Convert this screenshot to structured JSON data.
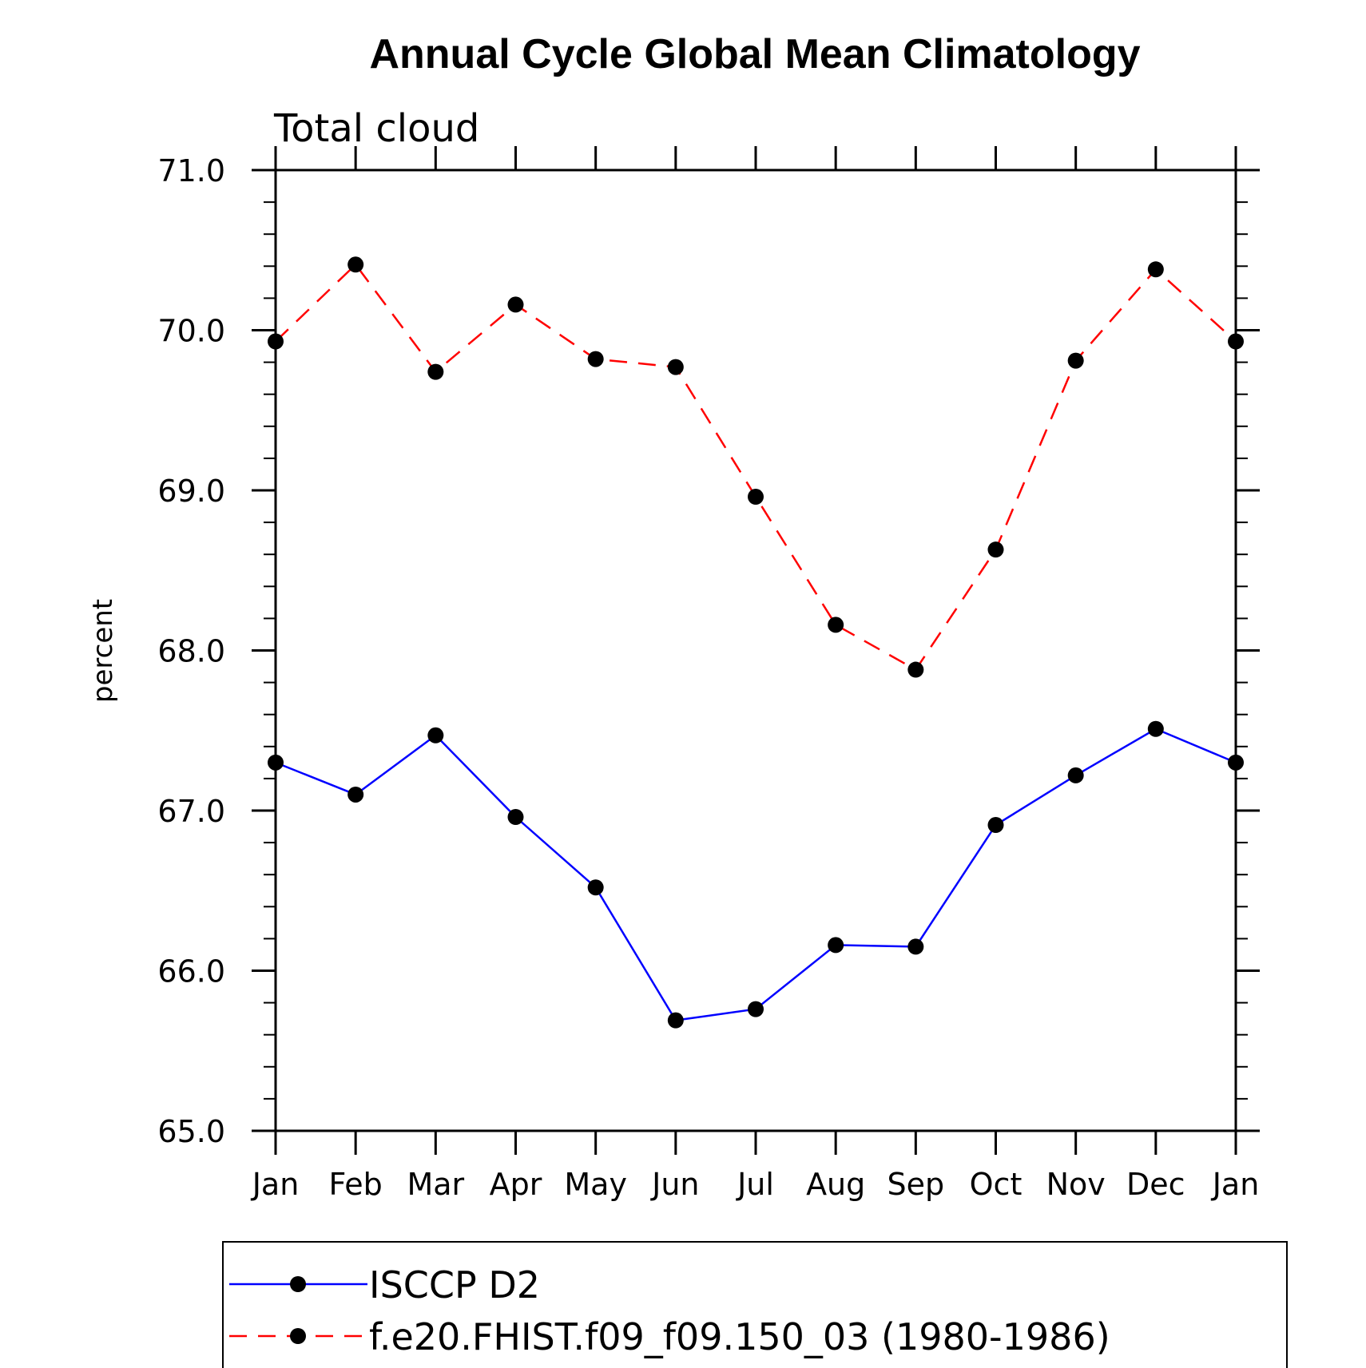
{
  "chart_data": {
    "type": "line",
    "title": "Annual Cycle Global Mean Climatology",
    "subtitle": "Total cloud",
    "xlabel": "",
    "ylabel": "percent",
    "categories": [
      "Jan",
      "Feb",
      "Mar",
      "Apr",
      "May",
      "Jun",
      "Jul",
      "Aug",
      "Sep",
      "Oct",
      "Nov",
      "Dec",
      "Jan"
    ],
    "ylim": [
      65.0,
      71.0
    ],
    "yticks": [
      "65.0",
      "66.0",
      "67.0",
      "68.0",
      "69.0",
      "70.0",
      "71.0"
    ],
    "grid": false,
    "legend_position": "bottom",
    "series": [
      {
        "name": "ISCCP D2",
        "color": "#0000ff",
        "line_style": "solid",
        "marker": "filled-circle",
        "values": [
          67.3,
          67.1,
          67.47,
          66.96,
          66.52,
          65.69,
          65.76,
          66.16,
          66.15,
          66.91,
          67.22,
          67.51,
          67.3
        ]
      },
      {
        "name": "f.e20.FHIST.f09_f09.150_03 (1980-1986)",
        "color": "#ff0000",
        "line_style": "dashed",
        "marker": "filled-circle",
        "values": [
          69.93,
          70.41,
          69.74,
          70.16,
          69.82,
          69.77,
          68.96,
          68.16,
          67.88,
          68.63,
          69.81,
          70.38,
          69.93
        ]
      }
    ]
  }
}
